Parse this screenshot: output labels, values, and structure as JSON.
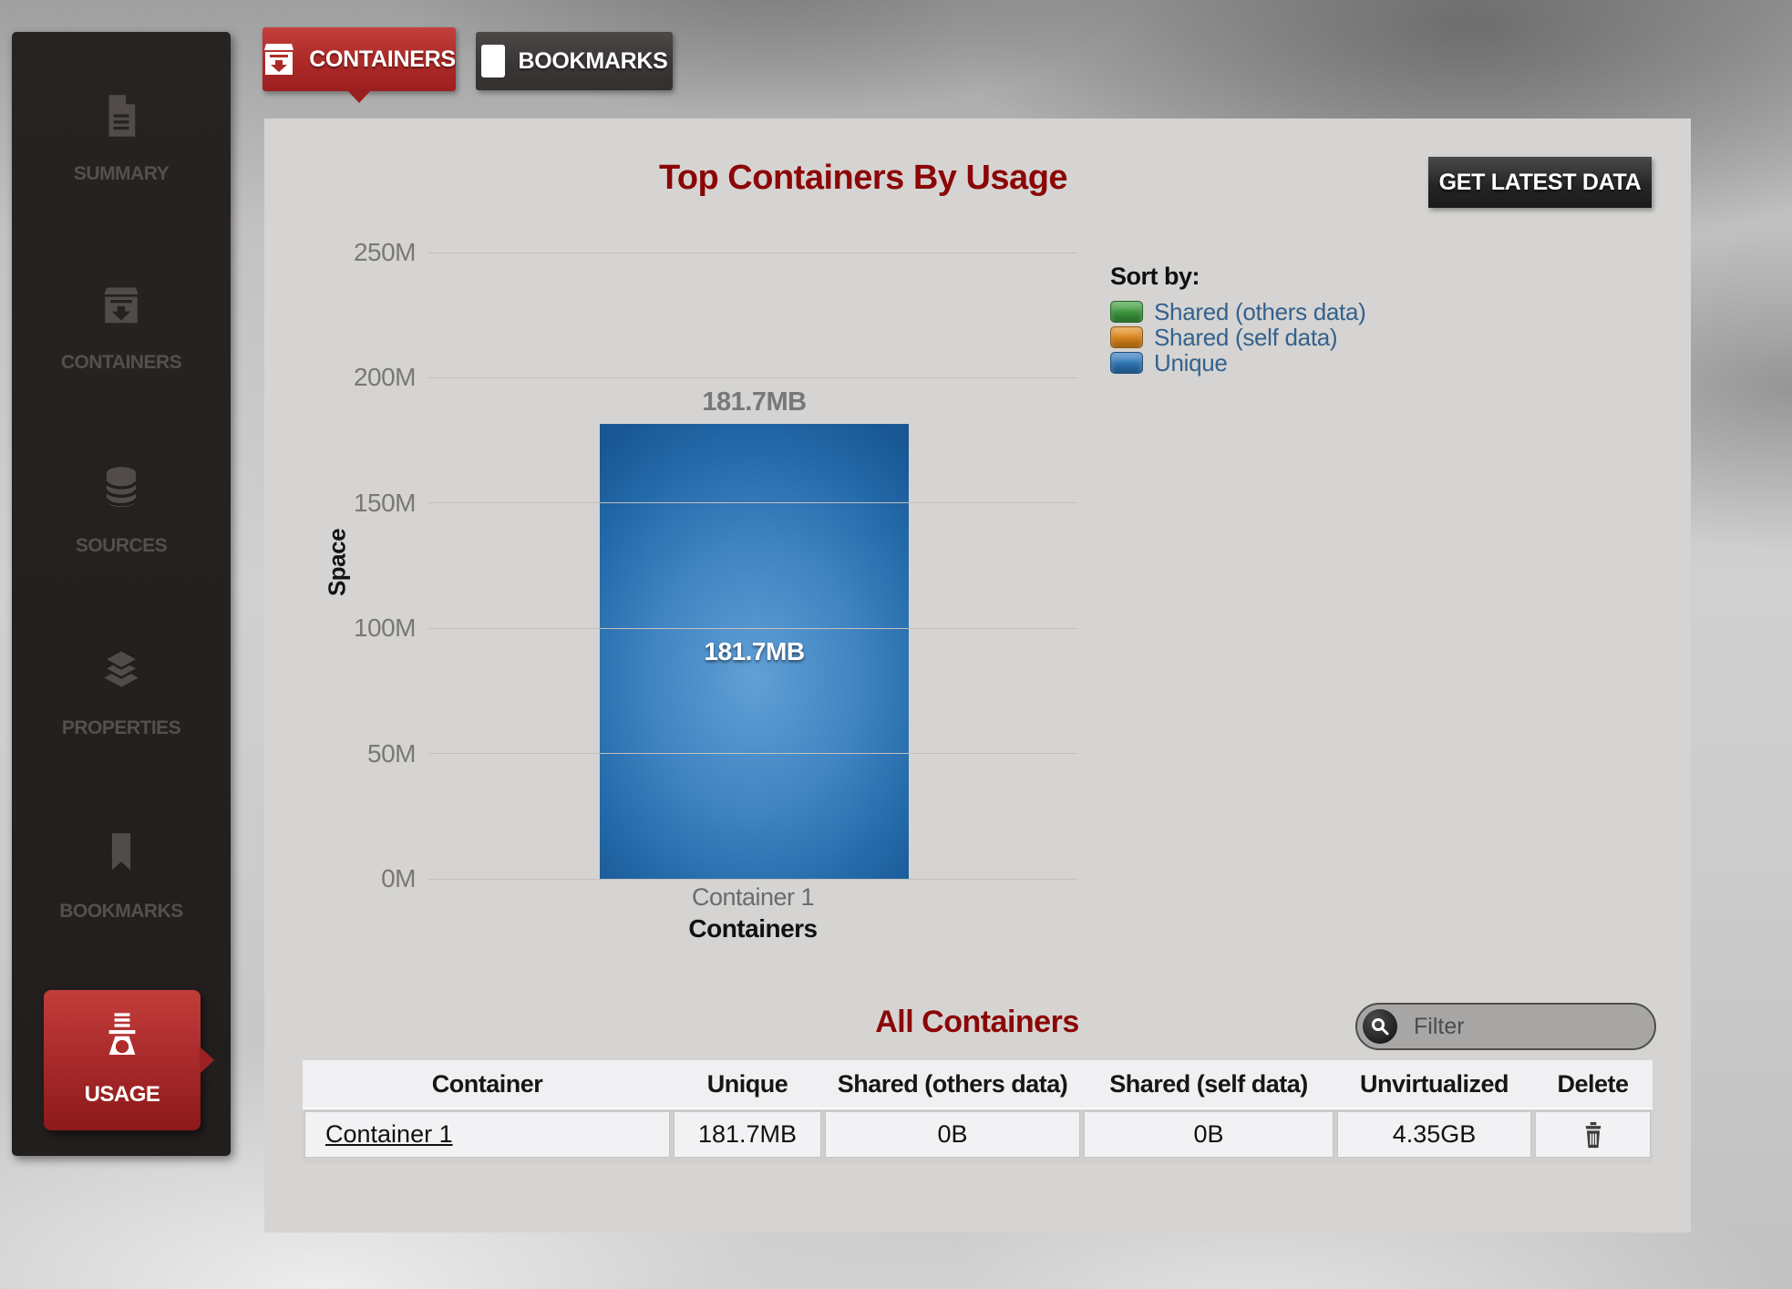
{
  "sidebar": {
    "items": [
      {
        "label": "SUMMARY",
        "icon": "document-icon",
        "active": false
      },
      {
        "label": "CONTAINERS",
        "icon": "inbox-icon",
        "active": false
      },
      {
        "label": "SOURCES",
        "icon": "database-icon",
        "active": false
      },
      {
        "label": "PROPERTIES",
        "icon": "layers-icon",
        "active": false
      },
      {
        "label": "BOOKMARKS",
        "icon": "bookmark-icon",
        "active": false
      },
      {
        "label": "USAGE",
        "icon": "weight-icon",
        "active": true
      }
    ]
  },
  "tabs": [
    {
      "label": "CONTAINERS",
      "icon": "containers-tab-icon",
      "active": true
    },
    {
      "label": "BOOKMARKS",
      "icon": "bookmark-tab-icon",
      "active": false
    }
  ],
  "toolbar": {
    "get_latest_label": "GET LATEST DATA"
  },
  "chart_data": {
    "type": "bar",
    "title": "Top Containers By Usage",
    "categories": [
      "Container 1"
    ],
    "series": [
      {
        "name": "Shared (others data)",
        "color": "#3d9b3d",
        "values_mb": [
          0
        ]
      },
      {
        "name": "Shared (self data)",
        "color": "#e0891b",
        "values_mb": [
          0
        ]
      },
      {
        "name": "Unique",
        "color": "#2e78ba",
        "values_mb": [
          181.7
        ]
      }
    ],
    "value_label": "181.7MB",
    "xlabel": "Containers",
    "ylabel": "Space",
    "ylim": [
      0,
      250
    ],
    "yticks": [
      {
        "label": "0M",
        "value": 0
      },
      {
        "label": "50M",
        "value": 50
      },
      {
        "label": "100M",
        "value": 100
      },
      {
        "label": "150M",
        "value": 150
      },
      {
        "label": "200M",
        "value": 200
      },
      {
        "label": "250M",
        "value": 250
      }
    ],
    "legend_title": "Sort by:",
    "legend_position": "right",
    "grid": true
  },
  "section": {
    "title": "All Containers"
  },
  "filter": {
    "placeholder": "Filter",
    "icon": "search-icon"
  },
  "table": {
    "columns": [
      {
        "key": "container",
        "label": "Container"
      },
      {
        "key": "unique",
        "label": "Unique"
      },
      {
        "key": "shared_others",
        "label": "Shared (others data)"
      },
      {
        "key": "shared_self",
        "label": "Shared (self data)"
      },
      {
        "key": "unvirtualized",
        "label": "Unvirtualized"
      },
      {
        "key": "delete",
        "label": "Delete"
      }
    ],
    "rows": [
      {
        "container": "Container 1",
        "unique": "181.7MB",
        "shared_others": "0B",
        "shared_self": "0B",
        "unvirtualized": "4.35GB",
        "delete": "trash-icon"
      }
    ]
  }
}
